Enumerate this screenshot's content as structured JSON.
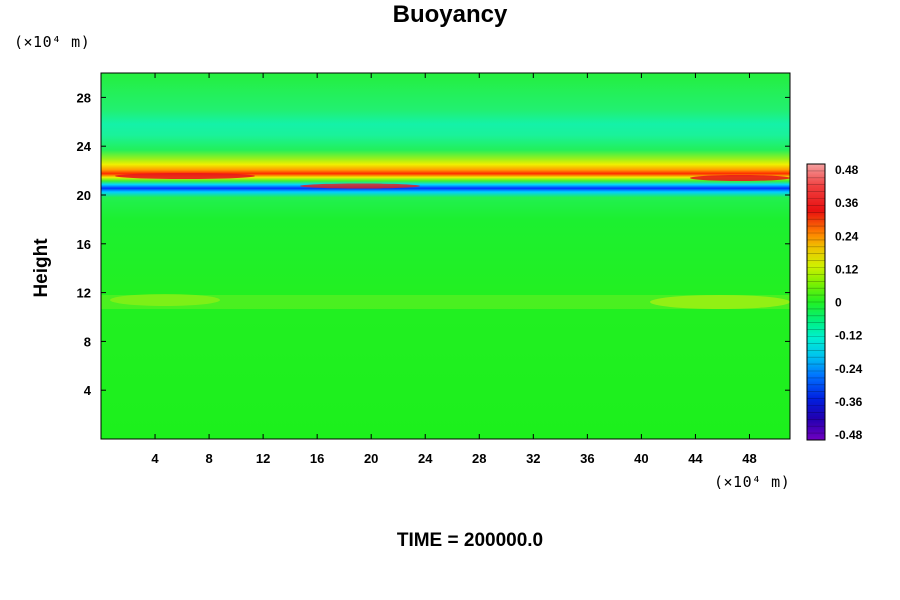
{
  "chart_data": {
    "type": "heatmap",
    "title": "Buoyancy",
    "ylabel": "Height",
    "x_unit": "(×10⁴ m)",
    "y_unit": "(×10⁴ m)",
    "x_ticks": [
      "4",
      "8",
      "12",
      "16",
      "20",
      "24",
      "28",
      "32",
      "36",
      "40",
      "44",
      "48"
    ],
    "y_ticks": [
      "4",
      "8",
      "12",
      "16",
      "20",
      "24",
      "28"
    ],
    "xlim": [
      0,
      51
    ],
    "ylim": [
      0,
      30
    ],
    "colorbar_labels": [
      "0.48",
      "0.36",
      "0.24",
      "0.12",
      "0",
      "-0.12",
      "-0.24",
      "-0.36",
      "-0.48"
    ],
    "colorbar_range": [
      -0.48,
      0.48
    ],
    "colors": {
      "background_field": "#22f022",
      "max": "#f08a8a",
      "min": "#7b00c8"
    },
    "field_features": [
      {
        "y": 21.3,
        "value": 0.4,
        "desc": "warm band"
      },
      {
        "y": 20.4,
        "value": -0.42,
        "desc": "cold band"
      },
      {
        "y": 25.5,
        "value": -0.08,
        "desc": "upper cyan band"
      },
      {
        "y": 11.2,
        "value": 0.1,
        "desc": "lower yellow-green layer"
      }
    ]
  },
  "footer": {
    "time_label": "TIME = 200000.0"
  }
}
